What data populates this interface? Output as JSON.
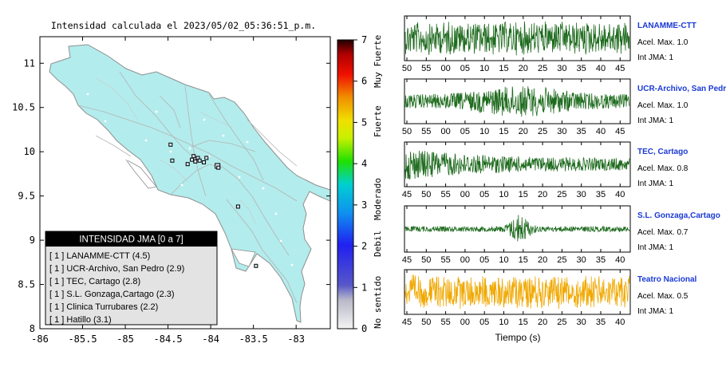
{
  "header": {
    "title": "Intensidad calculada el 2023/05/02_05:36:51_p.m."
  },
  "chart_data": [
    {
      "type": "map",
      "title": "Intensidad calculada el 2023/05/02_05:36:51_p.m.",
      "xlim": [
        -86,
        -82.6
      ],
      "ylim": [
        8,
        11.3
      ],
      "x_ticks": [
        "-86",
        "-85.5",
        "-85",
        "-84.5",
        "-84",
        "-83.5",
        "-83"
      ],
      "x_tick_values": [
        -86,
        -85.5,
        -85,
        -84.5,
        -84,
        -83.5,
        -83
      ],
      "y_ticks": [
        "8",
        "8.5",
        "9",
        "9.5",
        "10",
        "10.5",
        "11"
      ],
      "y_tick_values": [
        8,
        8.5,
        9,
        9.5,
        10,
        10.5,
        11
      ],
      "stations": [
        {
          "lon": -84.47,
          "lat": 10.08
        },
        {
          "lon": -84.45,
          "lat": 9.9
        },
        {
          "lon": -84.27,
          "lat": 9.86
        },
        {
          "lon": -84.22,
          "lat": 9.91
        },
        {
          "lon": -84.2,
          "lat": 9.95
        },
        {
          "lon": -84.18,
          "lat": 9.89
        },
        {
          "lon": -84.15,
          "lat": 9.93
        },
        {
          "lon": -84.13,
          "lat": 9.9
        },
        {
          "lon": -84.08,
          "lat": 9.88
        },
        {
          "lon": -84.05,
          "lat": 9.93
        },
        {
          "lon": -83.92,
          "lat": 9.84
        },
        {
          "lon": -83.91,
          "lat": 9.82
        },
        {
          "lon": -83.68,
          "lat": 9.38
        },
        {
          "lon": -83.47,
          "lat": 8.71
        }
      ]
    },
    {
      "type": "colorbar",
      "range": [
        0,
        7
      ],
      "ticks": [
        "0",
        "1",
        "2",
        "3",
        "4",
        "5",
        "6",
        "7"
      ],
      "tick_values": [
        0,
        1,
        2,
        3,
        4,
        5,
        6,
        7
      ],
      "labels": [
        "No sentido",
        "Debil",
        "Moderado",
        "Fuerte",
        "Muy Fuerte"
      ]
    },
    {
      "type": "line",
      "xlabel": "Tiempo (s)",
      "series": [
        {
          "name": "LANAMME-CTT",
          "accel": "Acel. Max. 1.0",
          "jma": "Int JMA: 1",
          "color": "#1e6b1e",
          "ticks": [
            "50",
            "55",
            "00",
            "05",
            "10",
            "15",
            "20",
            "25",
            "30",
            "35",
            "40",
            "45"
          ],
          "amplitude": 0.85,
          "envelope": "uniform"
        },
        {
          "name": "UCR-Archivo, San Pedro",
          "accel": "Acel. Max. 1.0",
          "jma": "Int JMA: 1",
          "color": "#1e6b1e",
          "ticks": [
            "50",
            "55",
            "00",
            "05",
            "10",
            "15",
            "20",
            "25",
            "30",
            "35",
            "40",
            "45"
          ],
          "amplitude": 0.75,
          "envelope": "middle"
        },
        {
          "name": "TEC, Cartago",
          "accel": "Acel. Max. 0.8",
          "jma": "Int JMA: 1",
          "color": "#1e6b1e",
          "ticks": [
            "45",
            "50",
            "55",
            "00",
            "05",
            "10",
            "15",
            "20",
            "25",
            "30",
            "35",
            "40"
          ],
          "amplitude": 0.8,
          "envelope": "early"
        },
        {
          "name": "S.L. Gonzaga,Cartago",
          "accel": "Acel. Max. 0.7",
          "jma": "Int JMA: 1",
          "color": "#1e6b1e",
          "ticks": [
            "45",
            "50",
            "55",
            "00",
            "05",
            "10",
            "15",
            "20",
            "25",
            "30",
            "35",
            "40"
          ],
          "amplitude": 0.7,
          "envelope": "burst"
        },
        {
          "name": "Teatro Nacional",
          "accel": "Acel. Max. 0.5",
          "jma": "Int JMA: 1",
          "color": "#f0a800",
          "ticks": [
            "45",
            "50",
            "55",
            "00",
            "05",
            "10",
            "15",
            "20",
            "25",
            "30",
            "35",
            "40"
          ],
          "amplitude": 0.85,
          "envelope": "uniform"
        }
      ]
    }
  ],
  "legend": {
    "title": "INTENSIDAD JMA [0 a 7]",
    "items": [
      "[ 1 ]  LANAMME-CTT (4.5)",
      "[ 1 ]  UCR-Archivo, San Pedro (2.9)",
      "[ 1 ]  TEC, Cartago (2.8)",
      "[ 1 ]  S.L. Gonzaga,Cartago (2.3)",
      "[ 1 ]  Clinica Turrubares (2.2)",
      "[ 1 ]  Hatillo (3.1)"
    ]
  },
  "colors": {
    "land": "#b3ecec",
    "border": "#9a9a9a",
    "waveform": "#1e6b1e",
    "waveform_alt": "#f0a800",
    "station_name": "#1a3ad6"
  }
}
